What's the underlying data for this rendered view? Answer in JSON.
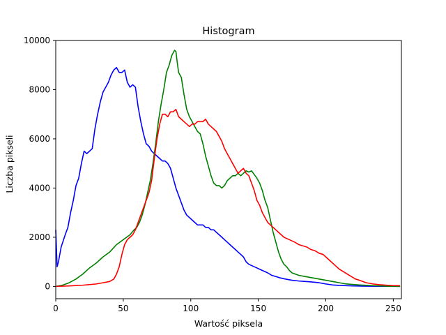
{
  "chart_data": {
    "type": "line",
    "title": "Histogram",
    "xlabel": "Wartość piksela",
    "ylabel": "Liczba pikseli",
    "xlim": [
      0,
      256
    ],
    "ylim": [
      -500,
      10000
    ],
    "xticks": [
      0,
      50,
      100,
      150,
      200,
      250
    ],
    "yticks": [
      0,
      2000,
      4000,
      6000,
      8000,
      10000
    ],
    "grid": false,
    "series": [
      {
        "color": "#0000ff",
        "points": [
          [
            0,
            2300
          ],
          [
            1,
            800
          ],
          [
            2,
            1000
          ],
          [
            4,
            1600
          ],
          [
            7,
            2100
          ],
          [
            9,
            2400
          ],
          [
            11,
            3000
          ],
          [
            13,
            3500
          ],
          [
            15,
            4100
          ],
          [
            17,
            4400
          ],
          [
            19,
            5000
          ],
          [
            21,
            5500
          ],
          [
            23,
            5400
          ],
          [
            25,
            5500
          ],
          [
            27,
            5600
          ],
          [
            29,
            6400
          ],
          [
            31,
            7000
          ],
          [
            33,
            7500
          ],
          [
            35,
            7900
          ],
          [
            37,
            8100
          ],
          [
            39,
            8300
          ],
          [
            41,
            8600
          ],
          [
            43,
            8800
          ],
          [
            45,
            8900
          ],
          [
            47,
            8700
          ],
          [
            49,
            8700
          ],
          [
            51,
            8800
          ],
          [
            53,
            8300
          ],
          [
            55,
            8100
          ],
          [
            57,
            8200
          ],
          [
            59,
            8100
          ],
          [
            61,
            7300
          ],
          [
            63,
            6700
          ],
          [
            65,
            6200
          ],
          [
            67,
            5800
          ],
          [
            69,
            5700
          ],
          [
            71,
            5500
          ],
          [
            73,
            5400
          ],
          [
            75,
            5300
          ],
          [
            77,
            5200
          ],
          [
            79,
            5100
          ],
          [
            81,
            5100
          ],
          [
            83,
            5000
          ],
          [
            85,
            4800
          ],
          [
            87,
            4400
          ],
          [
            89,
            4000
          ],
          [
            91,
            3700
          ],
          [
            93,
            3400
          ],
          [
            95,
            3100
          ],
          [
            97,
            2900
          ],
          [
            99,
            2800
          ],
          [
            101,
            2700
          ],
          [
            103,
            2600
          ],
          [
            105,
            2500
          ],
          [
            107,
            2500
          ],
          [
            109,
            2500
          ],
          [
            111,
            2400
          ],
          [
            113,
            2400
          ],
          [
            115,
            2300
          ],
          [
            117,
            2300
          ],
          [
            119,
            2200
          ],
          [
            121,
            2100
          ],
          [
            123,
            2000
          ],
          [
            125,
            1900
          ],
          [
            127,
            1800
          ],
          [
            129,
            1700
          ],
          [
            131,
            1600
          ],
          [
            133,
            1500
          ],
          [
            135,
            1400
          ],
          [
            137,
            1300
          ],
          [
            139,
            1200
          ],
          [
            141,
            1000
          ],
          [
            143,
            900
          ],
          [
            145,
            850
          ],
          [
            147,
            800
          ],
          [
            149,
            750
          ],
          [
            151,
            700
          ],
          [
            153,
            650
          ],
          [
            155,
            600
          ],
          [
            157,
            550
          ],
          [
            160,
            450
          ],
          [
            163,
            400
          ],
          [
            166,
            350
          ],
          [
            170,
            300
          ],
          [
            175,
            250
          ],
          [
            180,
            220
          ],
          [
            185,
            200
          ],
          [
            190,
            180
          ],
          [
            195,
            150
          ],
          [
            200,
            100
          ],
          [
            205,
            60
          ],
          [
            210,
            40
          ],
          [
            215,
            30
          ],
          [
            220,
            20
          ],
          [
            230,
            10
          ],
          [
            240,
            5
          ],
          [
            255,
            0
          ]
        ]
      },
      {
        "color": "#008000",
        "points": [
          [
            0,
            0
          ],
          [
            5,
            50
          ],
          [
            10,
            150
          ],
          [
            15,
            300
          ],
          [
            20,
            500
          ],
          [
            25,
            750
          ],
          [
            30,
            950
          ],
          [
            35,
            1200
          ],
          [
            40,
            1400
          ],
          [
            45,
            1700
          ],
          [
            50,
            1900
          ],
          [
            55,
            2100
          ],
          [
            58,
            2300
          ],
          [
            60,
            2400
          ],
          [
            62,
            2600
          ],
          [
            64,
            2900
          ],
          [
            66,
            3300
          ],
          [
            68,
            3800
          ],
          [
            70,
            4300
          ],
          [
            72,
            5000
          ],
          [
            74,
            5800
          ],
          [
            76,
            6700
          ],
          [
            78,
            7400
          ],
          [
            80,
            8000
          ],
          [
            82,
            8700
          ],
          [
            84,
            9000
          ],
          [
            86,
            9400
          ],
          [
            88,
            9600
          ],
          [
            89,
            9550
          ],
          [
            90,
            9100
          ],
          [
            91,
            8700
          ],
          [
            93,
            8500
          ],
          [
            95,
            7800
          ],
          [
            97,
            7200
          ],
          [
            99,
            6900
          ],
          [
            101,
            6700
          ],
          [
            103,
            6500
          ],
          [
            105,
            6300
          ],
          [
            107,
            6200
          ],
          [
            109,
            5800
          ],
          [
            111,
            5300
          ],
          [
            113,
            4900
          ],
          [
            115,
            4500
          ],
          [
            117,
            4200
          ],
          [
            119,
            4100
          ],
          [
            121,
            4100
          ],
          [
            123,
            4000
          ],
          [
            125,
            4100
          ],
          [
            127,
            4300
          ],
          [
            129,
            4400
          ],
          [
            131,
            4500
          ],
          [
            133,
            4500
          ],
          [
            135,
            4600
          ],
          [
            137,
            4500
          ],
          [
            139,
            4600
          ],
          [
            141,
            4700
          ],
          [
            143,
            4650
          ],
          [
            145,
            4700
          ],
          [
            147,
            4550
          ],
          [
            149,
            4400
          ],
          [
            151,
            4200
          ],
          [
            153,
            3900
          ],
          [
            155,
            3500
          ],
          [
            157,
            3200
          ],
          [
            159,
            2700
          ],
          [
            161,
            2200
          ],
          [
            163,
            1800
          ],
          [
            165,
            1400
          ],
          [
            167,
            1100
          ],
          [
            169,
            900
          ],
          [
            171,
            800
          ],
          [
            173,
            650
          ],
          [
            175,
            550
          ],
          [
            180,
            450
          ],
          [
            185,
            400
          ],
          [
            190,
            350
          ],
          [
            195,
            300
          ],
          [
            200,
            250
          ],
          [
            205,
            200
          ],
          [
            210,
            150
          ],
          [
            215,
            100
          ],
          [
            220,
            80
          ],
          [
            225,
            60
          ],
          [
            235,
            30
          ],
          [
            245,
            10
          ],
          [
            255,
            0
          ]
        ]
      },
      {
        "color": "#ff0000",
        "points": [
          [
            0,
            0
          ],
          [
            10,
            20
          ],
          [
            20,
            50
          ],
          [
            30,
            100
          ],
          [
            35,
            150
          ],
          [
            40,
            200
          ],
          [
            43,
            300
          ],
          [
            45,
            500
          ],
          [
            47,
            800
          ],
          [
            49,
            1300
          ],
          [
            51,
            1700
          ],
          [
            53,
            1900
          ],
          [
            55,
            2000
          ],
          [
            57,
            2100
          ],
          [
            59,
            2300
          ],
          [
            61,
            2600
          ],
          [
            63,
            2900
          ],
          [
            65,
            3200
          ],
          [
            67,
            3500
          ],
          [
            69,
            3800
          ],
          [
            71,
            4300
          ],
          [
            73,
            5200
          ],
          [
            75,
            6000
          ],
          [
            77,
            6600
          ],
          [
            79,
            7000
          ],
          [
            81,
            7000
          ],
          [
            83,
            6900
          ],
          [
            85,
            7100
          ],
          [
            87,
            7100
          ],
          [
            89,
            7200
          ],
          [
            91,
            6900
          ],
          [
            93,
            6800
          ],
          [
            95,
            6700
          ],
          [
            97,
            6600
          ],
          [
            99,
            6500
          ],
          [
            101,
            6600
          ],
          [
            103,
            6600
          ],
          [
            105,
            6700
          ],
          [
            107,
            6700
          ],
          [
            109,
            6700
          ],
          [
            111,
            6800
          ],
          [
            113,
            6600
          ],
          [
            115,
            6500
          ],
          [
            117,
            6400
          ],
          [
            119,
            6300
          ],
          [
            121,
            6100
          ],
          [
            123,
            5900
          ],
          [
            125,
            5600
          ],
          [
            127,
            5400
          ],
          [
            129,
            5200
          ],
          [
            131,
            5000
          ],
          [
            133,
            4800
          ],
          [
            135,
            4600
          ],
          [
            137,
            4700
          ],
          [
            139,
            4800
          ],
          [
            141,
            4600
          ],
          [
            143,
            4500
          ],
          [
            145,
            4200
          ],
          [
            147,
            3900
          ],
          [
            149,
            3500
          ],
          [
            151,
            3300
          ],
          [
            153,
            3000
          ],
          [
            155,
            2800
          ],
          [
            157,
            2600
          ],
          [
            159,
            2500
          ],
          [
            161,
            2400
          ],
          [
            163,
            2300
          ],
          [
            165,
            2200
          ],
          [
            167,
            2100
          ],
          [
            169,
            2000
          ],
          [
            171,
            1950
          ],
          [
            173,
            1900
          ],
          [
            175,
            1850
          ],
          [
            177,
            1800
          ],
          [
            180,
            1700
          ],
          [
            183,
            1650
          ],
          [
            186,
            1600
          ],
          [
            189,
            1500
          ],
          [
            192,
            1450
          ],
          [
            195,
            1350
          ],
          [
            198,
            1300
          ],
          [
            201,
            1150
          ],
          [
            204,
            1000
          ],
          [
            207,
            850
          ],
          [
            210,
            700
          ],
          [
            213,
            600
          ],
          [
            216,
            500
          ],
          [
            219,
            400
          ],
          [
            222,
            300
          ],
          [
            225,
            250
          ],
          [
            230,
            150
          ],
          [
            235,
            100
          ],
          [
            240,
            70
          ],
          [
            245,
            50
          ],
          [
            250,
            30
          ],
          [
            255,
            30
          ]
        ]
      }
    ]
  }
}
